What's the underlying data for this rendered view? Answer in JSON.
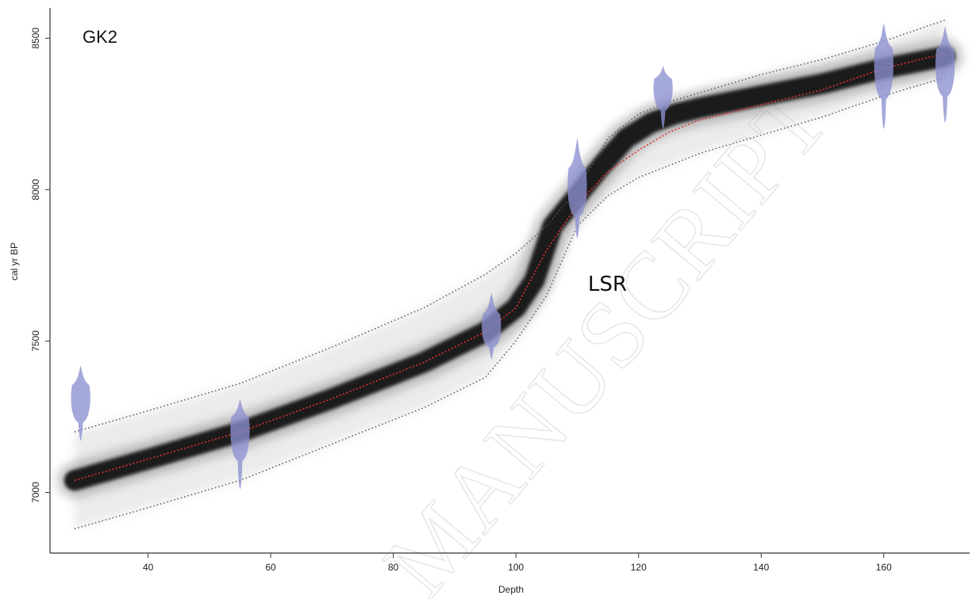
{
  "chart_data": {
    "type": "line",
    "title": "",
    "panel_label": "GK2",
    "annotation": "LSR",
    "watermark": "MANUSCRIPT",
    "xlabel": "Depth",
    "ylabel": "cal yr BP",
    "xlim": [
      24,
      174
    ],
    "ylim": [
      6800,
      8600
    ],
    "x_ticks": [
      40,
      60,
      80,
      100,
      120,
      140,
      160
    ],
    "y_ticks": [
      7000,
      7500,
      8000,
      8500
    ],
    "grid": false,
    "colors": {
      "mean_line": "#e03030",
      "bounds": "#555555",
      "envelope": "#000000",
      "dates": "#8c8fd0"
    },
    "series": [
      {
        "name": "",
        "role": "mean",
        "style": "dotted",
        "x": [
          28,
          40,
          55,
          70,
          85,
          95,
          100,
          105,
          110,
          115,
          120,
          125,
          130,
          140,
          150,
          160,
          170
        ],
        "y": [
          7040,
          7110,
          7200,
          7310,
          7430,
          7530,
          7610,
          7800,
          7950,
          8060,
          8130,
          8190,
          8230,
          8280,
          8330,
          8400,
          8450
        ]
      },
      {
        "name": "",
        "role": "upper",
        "style": "dotted",
        "x": [
          28,
          40,
          55,
          70,
          85,
          95,
          100,
          105,
          110,
          115,
          120,
          125,
          130,
          140,
          150,
          160,
          170
        ],
        "y": [
          7200,
          7270,
          7360,
          7480,
          7610,
          7720,
          7790,
          7880,
          8000,
          8170,
          8250,
          8290,
          8320,
          8380,
          8430,
          8490,
          8560
        ]
      },
      {
        "name": "",
        "role": "lower",
        "style": "dotted",
        "x": [
          28,
          40,
          55,
          70,
          85,
          95,
          100,
          105,
          110,
          115,
          120,
          125,
          130,
          140,
          150,
          160,
          170
        ],
        "y": [
          6880,
          6950,
          7040,
          7160,
          7280,
          7380,
          7500,
          7650,
          7880,
          7980,
          8040,
          8080,
          8120,
          8180,
          8240,
          8310,
          8370
        ]
      },
      {
        "name": "",
        "role": "dense",
        "style": "envelope",
        "x": [
          28,
          40,
          55,
          70,
          85,
          95,
          100,
          103,
          106,
          110,
          114,
          118,
          122,
          126,
          130,
          140,
          150,
          160,
          170
        ],
        "y": [
          7040,
          7110,
          7200,
          7310,
          7430,
          7530,
          7610,
          7700,
          7880,
          7980,
          8080,
          8170,
          8220,
          8250,
          8270,
          8310,
          8350,
          8400,
          8440
        ]
      }
    ],
    "dates": [
      {
        "depth": 29,
        "center": 7300,
        "low": 7170,
        "high": 7420
      },
      {
        "depth": 55,
        "center": 7200,
        "low": 7010,
        "high": 7310
      },
      {
        "depth": 96,
        "center": 7530,
        "low": 7440,
        "high": 7660
      },
      {
        "depth": 110,
        "center": 7990,
        "low": 7840,
        "high": 8170
      },
      {
        "depth": 124,
        "center": 8330,
        "low": 8200,
        "high": 8410
      },
      {
        "depth": 160,
        "center": 8400,
        "low": 8200,
        "high": 8550
      },
      {
        "depth": 170,
        "center": 8400,
        "low": 8220,
        "high": 8540
      }
    ]
  }
}
